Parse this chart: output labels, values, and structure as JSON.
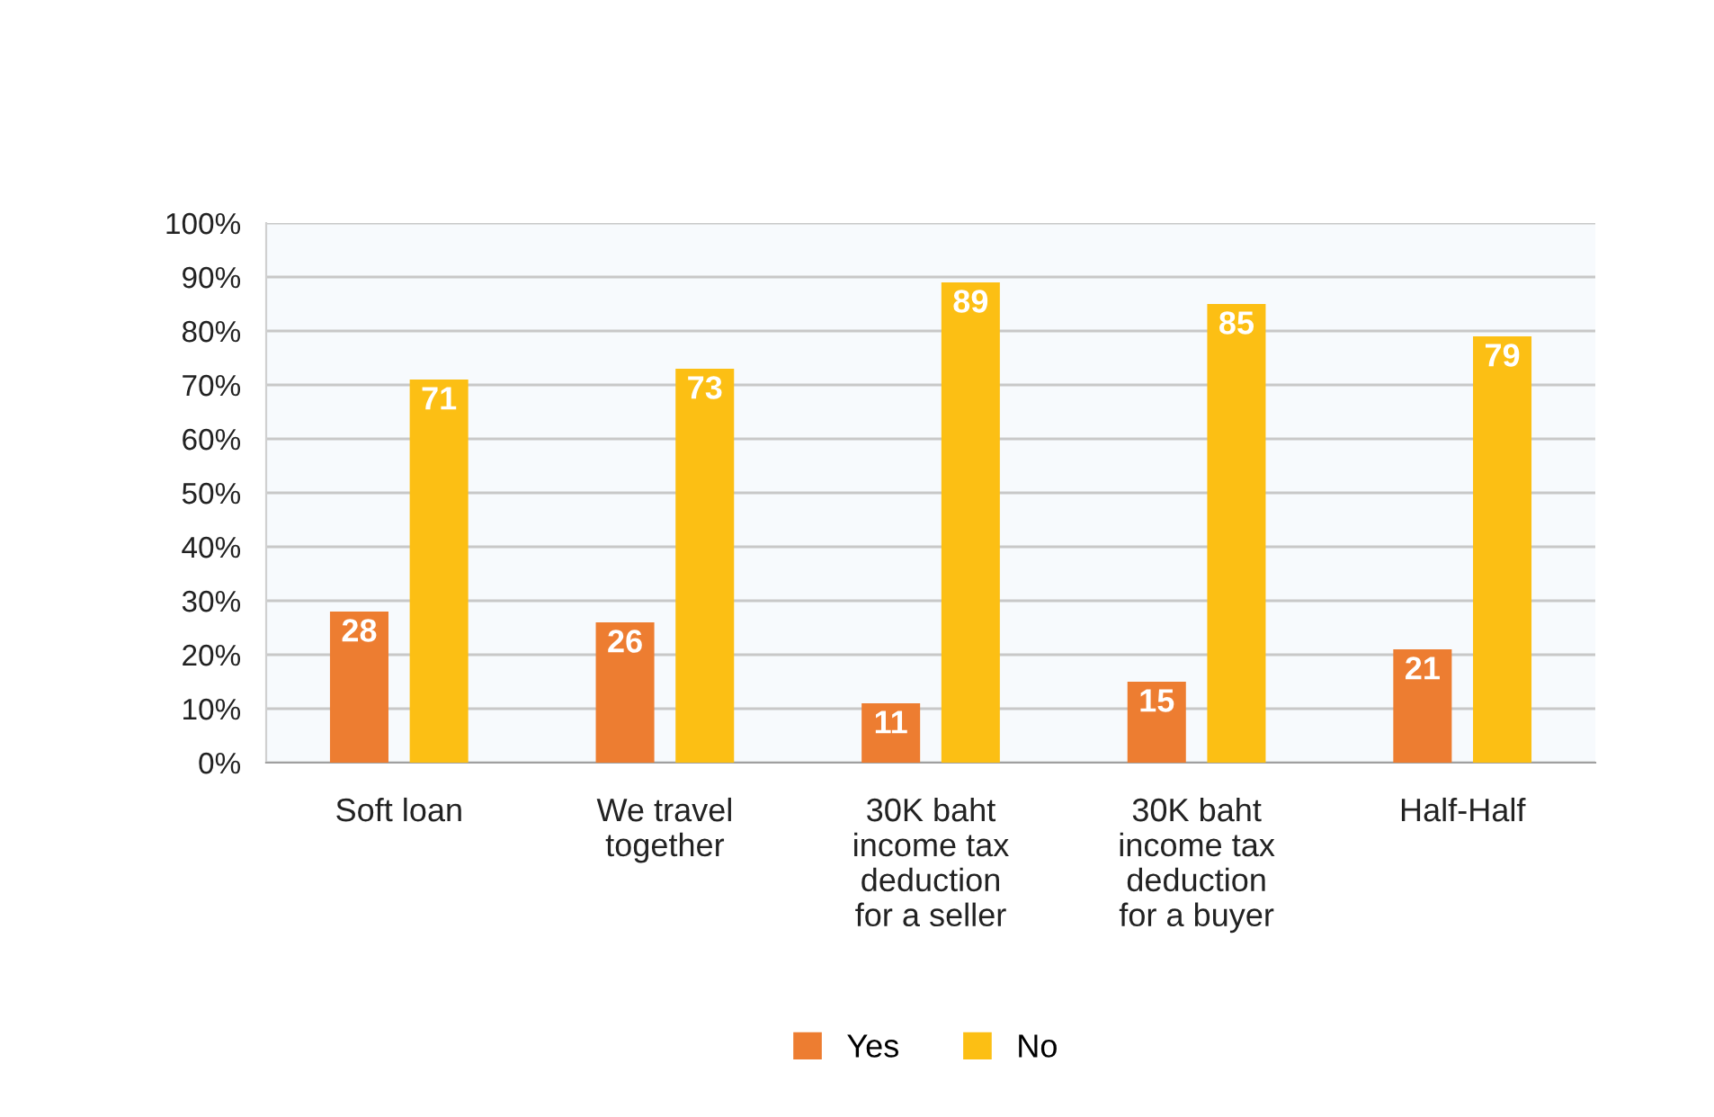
{
  "chart_data": {
    "type": "bar",
    "categories": [
      "Soft loan",
      "We travel\ntogether",
      "30K baht\nincome tax\ndeduction\nfor a seller",
      "30K baht\nincome tax\ndeduction\nfor a buyer",
      "Half-Half"
    ],
    "series": [
      {
        "name": "Yes",
        "color": "#ed7d31",
        "values": [
          28,
          26,
          11,
          15,
          21
        ]
      },
      {
        "name": "No",
        "color": "#fcbf14",
        "values": [
          71,
          73,
          89,
          85,
          79
        ]
      }
    ],
    "ylim": [
      0,
      100
    ],
    "yticks": [
      {
        "value": 0,
        "label": "0%"
      },
      {
        "value": 10,
        "label": "10%"
      },
      {
        "value": 20,
        "label": "20%"
      },
      {
        "value": 30,
        "label": "30%"
      },
      {
        "value": 40,
        "label": "40%"
      },
      {
        "value": 50,
        "label": "50%"
      },
      {
        "value": 60,
        "label": "60%"
      },
      {
        "value": 70,
        "label": "70%"
      },
      {
        "value": 80,
        "label": "80%"
      },
      {
        "value": 90,
        "label": "90%"
      },
      {
        "value": 100,
        "label": "100%"
      }
    ],
    "grid": "y",
    "legend": "bottom",
    "data_labels": true
  }
}
